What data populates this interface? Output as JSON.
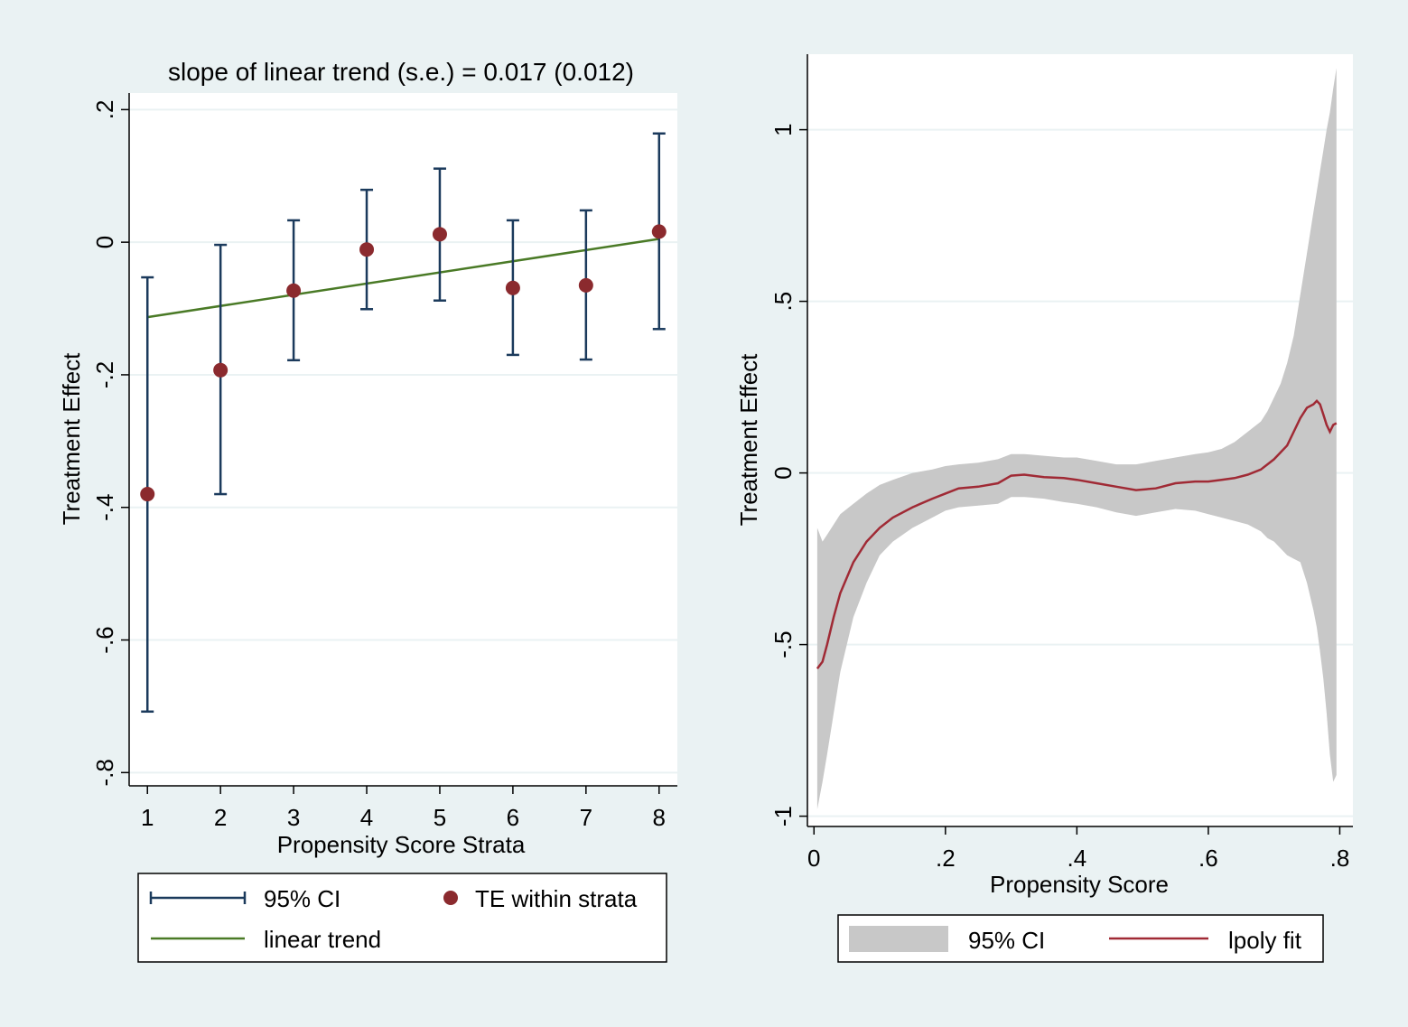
{
  "figure": {
    "background_color": "#eaf2f3",
    "plot_background": "#ffffff",
    "grid_color": "#eaf2f3"
  },
  "chart_data": [
    {
      "type": "scatter",
      "title": "slope of linear trend (s.e.) = 0.017 (0.012)",
      "xlabel": "Propensity Score Strata",
      "ylabel": "Treatment Effect",
      "xlim": [
        0.75,
        8.25
      ],
      "ylim": [
        -0.82,
        0.225
      ],
      "xticks": [
        1,
        2,
        3,
        4,
        5,
        6,
        7,
        8
      ],
      "xtick_labels": [
        "1",
        "2",
        "3",
        "4",
        "5",
        "6",
        "7",
        "8"
      ],
      "yticks": [
        -0.8,
        -0.6,
        -0.4,
        -0.2,
        0,
        0.2
      ],
      "ytick_labels": [
        "-.8",
        "-.6",
        "-.4",
        "-.2",
        "0",
        ".2"
      ],
      "grid": true,
      "series": [
        {
          "name": "TE within strata",
          "kind": "points",
          "color": "#8b2a2e",
          "x": [
            1,
            2,
            3,
            4,
            5,
            6,
            7,
            8
          ],
          "y": [
            -0.38,
            -0.193,
            -0.073,
            -0.011,
            0.012,
            -0.069,
            -0.065,
            0.016
          ]
        },
        {
          "name": "95% CI",
          "kind": "errorbars",
          "color": "#1b3a5c",
          "x": [
            1,
            2,
            3,
            4,
            5,
            6,
            7,
            8
          ],
          "lower": [
            -0.708,
            -0.38,
            -0.178,
            -0.101,
            -0.088,
            -0.17,
            -0.177,
            -0.131
          ],
          "upper": [
            -0.053,
            -0.004,
            0.033,
            0.079,
            0.111,
            0.033,
            0.048,
            0.164
          ]
        },
        {
          "name": "linear trend",
          "kind": "line",
          "color": "#4a7a26",
          "x": [
            1,
            8
          ],
          "y": [
            -0.113,
            0.005
          ]
        }
      ],
      "legend": {
        "position": "bottom",
        "entries": [
          {
            "label": "95% CI",
            "symbol": "errorbar",
            "color": "#1b3a5c"
          },
          {
            "label": "TE within strata",
            "symbol": "dot",
            "color": "#8b2a2e"
          },
          {
            "label": "linear trend",
            "symbol": "line",
            "color": "#4a7a26"
          }
        ]
      }
    },
    {
      "type": "area",
      "title": "",
      "xlabel": "Propensity Score",
      "ylabel": "Treatment Effect",
      "xlim": [
        -0.01,
        0.82
      ],
      "ylim": [
        -1.03,
        1.22
      ],
      "xticks": [
        0,
        0.2,
        0.4,
        0.6,
        0.8
      ],
      "xtick_labels": [
        "0",
        ".2",
        ".4",
        ".6",
        ".8"
      ],
      "yticks": [
        -1,
        -0.5,
        0,
        0.5,
        1
      ],
      "ytick_labels": [
        "-1",
        "-.5",
        "0",
        ".5",
        "1"
      ],
      "grid": true,
      "x": [
        0.005,
        0.013,
        0.02,
        0.03,
        0.04,
        0.06,
        0.08,
        0.1,
        0.12,
        0.15,
        0.18,
        0.2,
        0.22,
        0.25,
        0.28,
        0.3,
        0.32,
        0.35,
        0.38,
        0.4,
        0.43,
        0.46,
        0.49,
        0.52,
        0.55,
        0.58,
        0.6,
        0.62,
        0.64,
        0.66,
        0.68,
        0.69,
        0.7,
        0.71,
        0.72,
        0.73,
        0.74,
        0.75,
        0.76,
        0.765,
        0.77,
        0.775,
        0.78,
        0.785,
        0.79,
        0.795
      ],
      "series": [
        {
          "name": "lpoly fit",
          "kind": "line",
          "color": "#a02a35",
          "y": [
            -0.57,
            -0.55,
            -0.5,
            -0.42,
            -0.35,
            -0.26,
            -0.2,
            -0.16,
            -0.13,
            -0.1,
            -0.075,
            -0.06,
            -0.045,
            -0.04,
            -0.03,
            -0.008,
            -0.005,
            -0.012,
            -0.015,
            -0.02,
            -0.03,
            -0.04,
            -0.05,
            -0.045,
            -0.03,
            -0.025,
            -0.025,
            -0.02,
            -0.015,
            -0.005,
            0.01,
            0.025,
            0.04,
            0.06,
            0.08,
            0.12,
            0.16,
            0.19,
            0.2,
            0.21,
            0.2,
            0.17,
            0.14,
            0.12,
            0.14,
            0.145
          ]
        },
        {
          "name": "95% CI",
          "kind": "band",
          "color": "#c8c8c8",
          "lower": [
            -0.98,
            -0.9,
            -0.82,
            -0.7,
            -0.58,
            -0.42,
            -0.32,
            -0.24,
            -0.2,
            -0.16,
            -0.13,
            -0.11,
            -0.1,
            -0.095,
            -0.09,
            -0.07,
            -0.07,
            -0.075,
            -0.085,
            -0.09,
            -0.1,
            -0.115,
            -0.125,
            -0.115,
            -0.105,
            -0.11,
            -0.12,
            -0.13,
            -0.14,
            -0.15,
            -0.17,
            -0.19,
            -0.2,
            -0.22,
            -0.24,
            -0.25,
            -0.26,
            -0.32,
            -0.4,
            -0.45,
            -0.52,
            -0.6,
            -0.7,
            -0.82,
            -0.9,
            -0.88
          ],
          "upper": [
            -0.16,
            -0.2,
            -0.18,
            -0.15,
            -0.12,
            -0.09,
            -0.06,
            -0.035,
            -0.02,
            0.0,
            0.01,
            0.02,
            0.025,
            0.03,
            0.04,
            0.055,
            0.055,
            0.05,
            0.045,
            0.045,
            0.035,
            0.025,
            0.025,
            0.035,
            0.045,
            0.055,
            0.06,
            0.07,
            0.09,
            0.12,
            0.15,
            0.18,
            0.22,
            0.26,
            0.32,
            0.4,
            0.52,
            0.64,
            0.76,
            0.82,
            0.88,
            0.94,
            1.0,
            1.05,
            1.12,
            1.18
          ]
        }
      ],
      "legend": {
        "position": "bottom",
        "entries": [
          {
            "label": "95% CI",
            "symbol": "band",
            "color": "#c8c8c8"
          },
          {
            "label": "lpoly fit",
            "symbol": "line",
            "color": "#a02a35"
          }
        ]
      }
    }
  ]
}
